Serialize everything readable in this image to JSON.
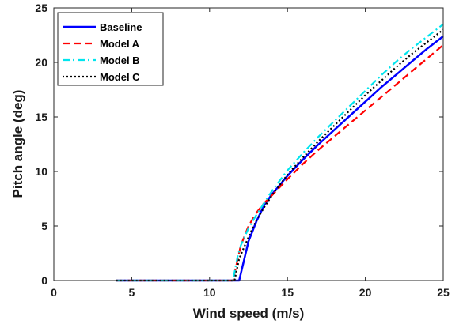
{
  "chart_data": {
    "type": "line",
    "xlabel": "Wind speed (m/s)",
    "ylabel": "Pitch angle (deg)",
    "xlim": [
      0,
      25
    ],
    "ylim": [
      0,
      25
    ],
    "xticks": [
      0,
      5,
      10,
      15,
      20,
      25
    ],
    "yticks": [
      0,
      5,
      10,
      15,
      20,
      25
    ],
    "grid": false,
    "legend_position": "top-left",
    "series": [
      {
        "name": "Baseline",
        "color": "#0000ff",
        "dash": "solid",
        "x": [
          4,
          11.9,
          12.5,
          13,
          13.5,
          14,
          15,
          16,
          17,
          18,
          19,
          20,
          21,
          22,
          23,
          24,
          25
        ],
        "y": [
          0,
          0,
          3.6,
          5.4,
          6.9,
          7.9,
          9.6,
          11.1,
          12.5,
          13.8,
          15.1,
          16.4,
          17.7,
          18.9,
          20.1,
          21.3,
          22.4
        ]
      },
      {
        "name": "Model A",
        "color": "#ff0000",
        "dash": "dashed",
        "x": [
          4,
          11.5,
          12,
          12.5,
          13,
          13.5,
          14,
          15,
          16,
          17,
          18,
          19,
          20,
          21,
          22,
          23,
          24,
          25
        ],
        "y": [
          0,
          0,
          3.2,
          5.0,
          6.2,
          7.1,
          7.8,
          9.3,
          10.7,
          12.0,
          13.2,
          14.4,
          15.6,
          16.8,
          18.0,
          19.2,
          20.4,
          21.6
        ]
      },
      {
        "name": "Model B",
        "color": "#00e5ee",
        "dash": "dashdot",
        "x": [
          4,
          11.5,
          11.8,
          12,
          12.5,
          13,
          13.5,
          14,
          15,
          16,
          17,
          18,
          19,
          20,
          21,
          22,
          23,
          24,
          25
        ],
        "y": [
          0,
          0,
          2.2,
          3.2,
          4.8,
          6.0,
          7.1,
          8.2,
          10.1,
          11.7,
          13.2,
          14.6,
          16.0,
          17.4,
          18.8,
          20.1,
          21.3,
          22.4,
          23.5
        ]
      },
      {
        "name": "Model C",
        "color": "#000000",
        "dash": "dotted",
        "x": [
          4,
          11.6,
          11.9,
          12.2,
          12.6,
          13,
          13.5,
          14,
          15,
          16,
          17,
          18,
          19,
          20,
          21,
          22,
          23,
          24,
          25
        ],
        "y": [
          0,
          0,
          2.0,
          3.0,
          4.3,
          5.5,
          6.7,
          7.8,
          9.7,
          11.3,
          12.8,
          14.2,
          15.6,
          17.0,
          18.3,
          19.6,
          20.8,
          21.9,
          23.0
        ]
      }
    ]
  }
}
